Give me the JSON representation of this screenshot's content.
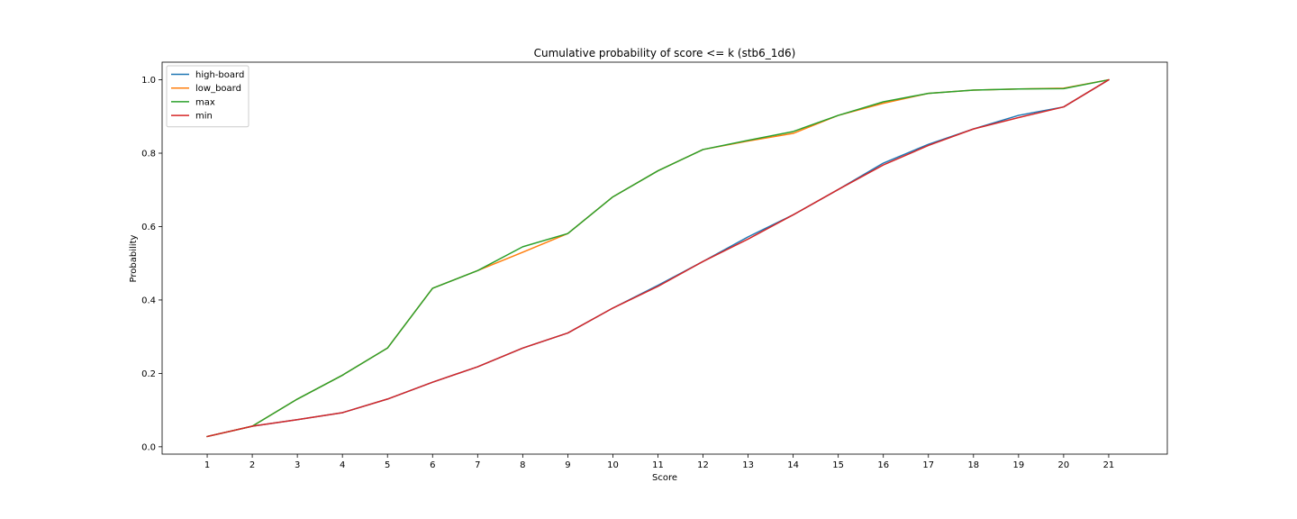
{
  "chart_data": {
    "type": "line",
    "title": "Cumulative probability of score <= k (stb6_1d6)",
    "xlabel": "Score",
    "ylabel": "Probability",
    "x": [
      1,
      2,
      3,
      4,
      5,
      6,
      7,
      8,
      9,
      10,
      11,
      12,
      13,
      14,
      15,
      16,
      17,
      18,
      19,
      20,
      21
    ],
    "x_tick_labels": [
      "1",
      "2",
      "3",
      "4",
      "5",
      "6",
      "7",
      "8",
      "9",
      "10",
      "11",
      "12",
      "13",
      "14",
      "15",
      "16",
      "17",
      "18",
      "19",
      "20",
      "21"
    ],
    "y_ticks": [
      0.0,
      0.2,
      0.4,
      0.6,
      0.8,
      1.0
    ],
    "y_tick_labels": [
      "0.0",
      "0.2",
      "0.4",
      "0.6",
      "0.8",
      "1.0"
    ],
    "xlim": [
      0,
      22.3
    ],
    "ylim": [
      -0.02,
      1.048
    ],
    "grid": false,
    "legend_position": "top-left",
    "series": [
      {
        "name": "high-board",
        "color": "#1f77b4",
        "values": [
          0.028,
          0.056,
          0.074,
          0.093,
          0.13,
          0.176,
          0.218,
          0.269,
          0.31,
          0.378,
          0.44,
          0.505,
          0.572,
          0.632,
          0.701,
          0.773,
          0.824,
          0.866,
          0.903,
          0.926,
          1.0
        ]
      },
      {
        "name": "low_board",
        "color": "#ff7f0e",
        "values": [
          0.028,
          0.056,
          0.13,
          0.195,
          0.269,
          0.432,
          0.48,
          0.53,
          0.581,
          0.681,
          0.752,
          0.81,
          0.833,
          0.854,
          0.903,
          0.936,
          0.963,
          0.972,
          0.975,
          0.977,
          1.0
        ]
      },
      {
        "name": "max",
        "color": "#2ca02c",
        "values": [
          0.028,
          0.056,
          0.13,
          0.195,
          0.269,
          0.432,
          0.48,
          0.545,
          0.581,
          0.681,
          0.752,
          0.81,
          0.835,
          0.859,
          0.903,
          0.94,
          0.963,
          0.972,
          0.975,
          0.976,
          1.0
        ]
      },
      {
        "name": "min",
        "color": "#d62728",
        "values": [
          0.028,
          0.056,
          0.074,
          0.093,
          0.13,
          0.176,
          0.218,
          0.269,
          0.31,
          0.378,
          0.437,
          0.505,
          0.566,
          0.632,
          0.701,
          0.768,
          0.821,
          0.866,
          0.897,
          0.926,
          1.0
        ]
      }
    ]
  }
}
